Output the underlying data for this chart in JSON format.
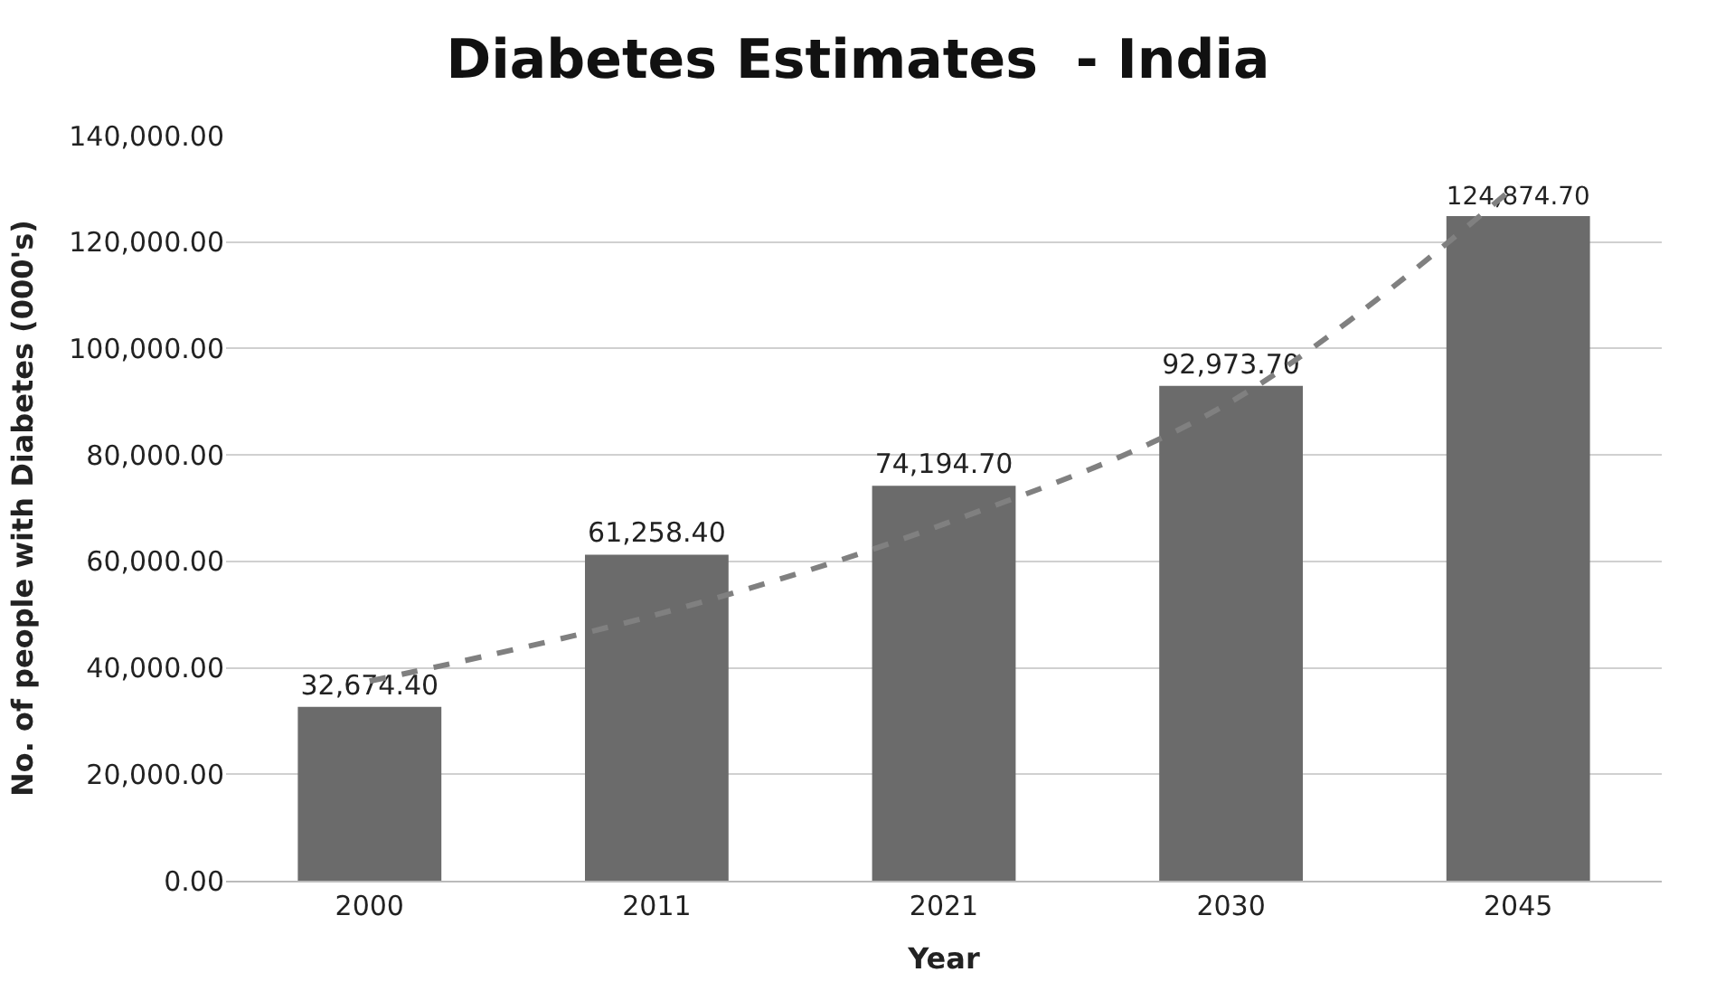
{
  "chart_data": {
    "type": "bar",
    "title": "Diabetes Estimates  - India",
    "xlabel": "Year",
    "ylabel": "No. of people with Diabetes (000's)",
    "categories": [
      "2000",
      "2011",
      "2021",
      "2030",
      "2045"
    ],
    "series": [
      {
        "color": "#6b6b6b",
        "values": [
          32674.4,
          61258.4,
          74194.7,
          92973.7,
          124874.7
        ],
        "value_labels": [
          "32,674.40",
          "61,258.40",
          "74,194.70",
          "92,973.70",
          "124,874.70"
        ]
      },
      {
        "type": "line",
        "color": "#808080",
        "line_style": "dashed",
        "values": [
          37500,
          50000,
          67000,
          90000,
          131000
        ]
      }
    ],
    "ylim": [
      0,
      140000
    ],
    "yticks": [
      {
        "value": 0,
        "label": "0.00"
      },
      {
        "value": 20000,
        "label": "20,000.00"
      },
      {
        "value": 40000,
        "label": "40,000.00"
      },
      {
        "value": 60000,
        "label": "60,000.00"
      },
      {
        "value": 80000,
        "label": "80,000.00"
      },
      {
        "value": 100000,
        "label": "100,000.00"
      },
      {
        "value": 120000,
        "label": "120,000.00"
      },
      {
        "value": 140000,
        "label": "140,000.00"
      }
    ],
    "grid": "y",
    "legend": false
  }
}
